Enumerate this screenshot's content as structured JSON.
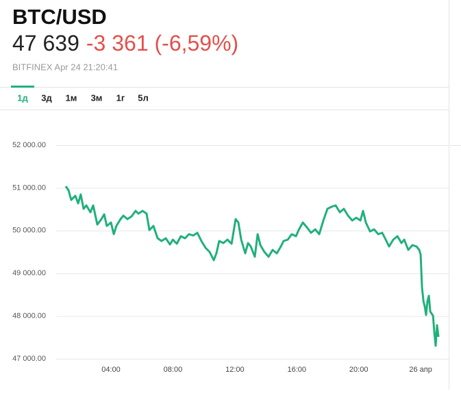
{
  "header": {
    "title": "BTC/USD",
    "price": "47 639",
    "change": "-3 361 (-6,59%)",
    "source": "BITFINEX Apr 24 21:20:41"
  },
  "tabs": {
    "items": [
      "1д",
      "3д",
      "1м",
      "3м",
      "1г",
      "5л"
    ],
    "active": 0
  },
  "chart_data": {
    "type": "line",
    "color": "#20b07a",
    "grid": true,
    "xlim": [
      0.46,
      25.81
    ],
    "xticks": [
      {
        "value": 4,
        "label": "04:00"
      },
      {
        "value": 8,
        "label": "08:00"
      },
      {
        "value": 12,
        "label": "12:00"
      },
      {
        "value": 16,
        "label": "16:00"
      },
      {
        "value": 20,
        "label": "20:00"
      },
      {
        "value": 24,
        "label": "26 апр"
      }
    ],
    "ylim": [
      47000,
      52000
    ],
    "yticks": [
      {
        "value": 47000,
        "label": "47 000.00"
      },
      {
        "value": 48000,
        "label": "48 000.00"
      },
      {
        "value": 49000,
        "label": "49 000.00"
      },
      {
        "value": 50000,
        "label": "50 000.00"
      },
      {
        "value": 51000,
        "label": "51 000.00"
      },
      {
        "value": 52000,
        "label": "52 000.00"
      }
    ],
    "x": [
      1.08,
      1.26,
      1.43,
      1.7,
      1.88,
      2.05,
      2.23,
      2.41,
      2.67,
      2.85,
      3.12,
      3.38,
      3.56,
      3.73,
      4.0,
      4.18,
      4.35,
      4.62,
      4.8,
      5.06,
      5.33,
      5.59,
      5.77,
      6.04,
      6.3,
      6.48,
      6.74,
      7.01,
      7.27,
      7.54,
      7.81,
      8.0,
      8.25,
      8.51,
      8.78,
      9.04,
      9.31,
      9.58,
      9.84,
      10.11,
      10.37,
      10.64,
      10.81,
      10.99,
      11.26,
      11.52,
      11.79,
      12.05,
      12.23,
      12.41,
      12.67,
      12.85,
      13.03,
      13.29,
      13.47,
      13.65,
      13.91,
      14.18,
      14.44,
      14.71,
      14.97,
      15.15,
      15.42,
      15.68,
      15.95,
      16.12,
      16.39,
      16.65,
      16.92,
      17.19,
      17.45,
      17.72,
      17.98,
      18.25,
      18.51,
      18.78,
      19.04,
      19.31,
      19.58,
      19.84,
      20.11,
      20.28,
      20.46,
      20.73,
      20.99,
      21.26,
      21.52,
      21.79,
      21.96,
      22.23,
      22.5,
      22.76,
      22.94,
      23.2,
      23.47,
      23.73,
      23.91,
      24.0,
      24.09,
      24.18,
      24.27,
      24.35,
      24.44,
      24.53,
      24.62,
      24.8,
      24.88,
      24.97,
      25.06,
      25.15
    ],
    "values": [
      51038,
      50942,
      50718,
      50814,
      50638,
      50846,
      50510,
      50590,
      50430,
      50590,
      50141,
      50269,
      50381,
      50109,
      50189,
      49917,
      50109,
      50269,
      50349,
      50269,
      50333,
      50462,
      50398,
      50462,
      50398,
      50013,
      50109,
      49821,
      49756,
      49821,
      49676,
      49788,
      49692,
      49869,
      49821,
      49917,
      49885,
      49949,
      49756,
      49596,
      49500,
      49308,
      49468,
      49756,
      49708,
      49788,
      49692,
      50269,
      50189,
      49788,
      49468,
      49708,
      49628,
      49388,
      49917,
      49660,
      49500,
      49388,
      49548,
      49468,
      49628,
      49756,
      49788,
      49917,
      49869,
      50013,
      50189,
      50077,
      49949,
      50029,
      49917,
      50237,
      50510,
      50558,
      50590,
      50430,
      50510,
      50349,
      50237,
      50301,
      50237,
      50462,
      50189,
      49981,
      50029,
      49917,
      49949,
      49756,
      49628,
      49788,
      49869,
      49708,
      49788,
      49548,
      49660,
      49628,
      49548,
      49436,
      48667,
      48346,
      48218,
      48026,
      48346,
      48474,
      48106,
      48006,
      47625,
      47304,
      47785,
      47513
    ]
  }
}
